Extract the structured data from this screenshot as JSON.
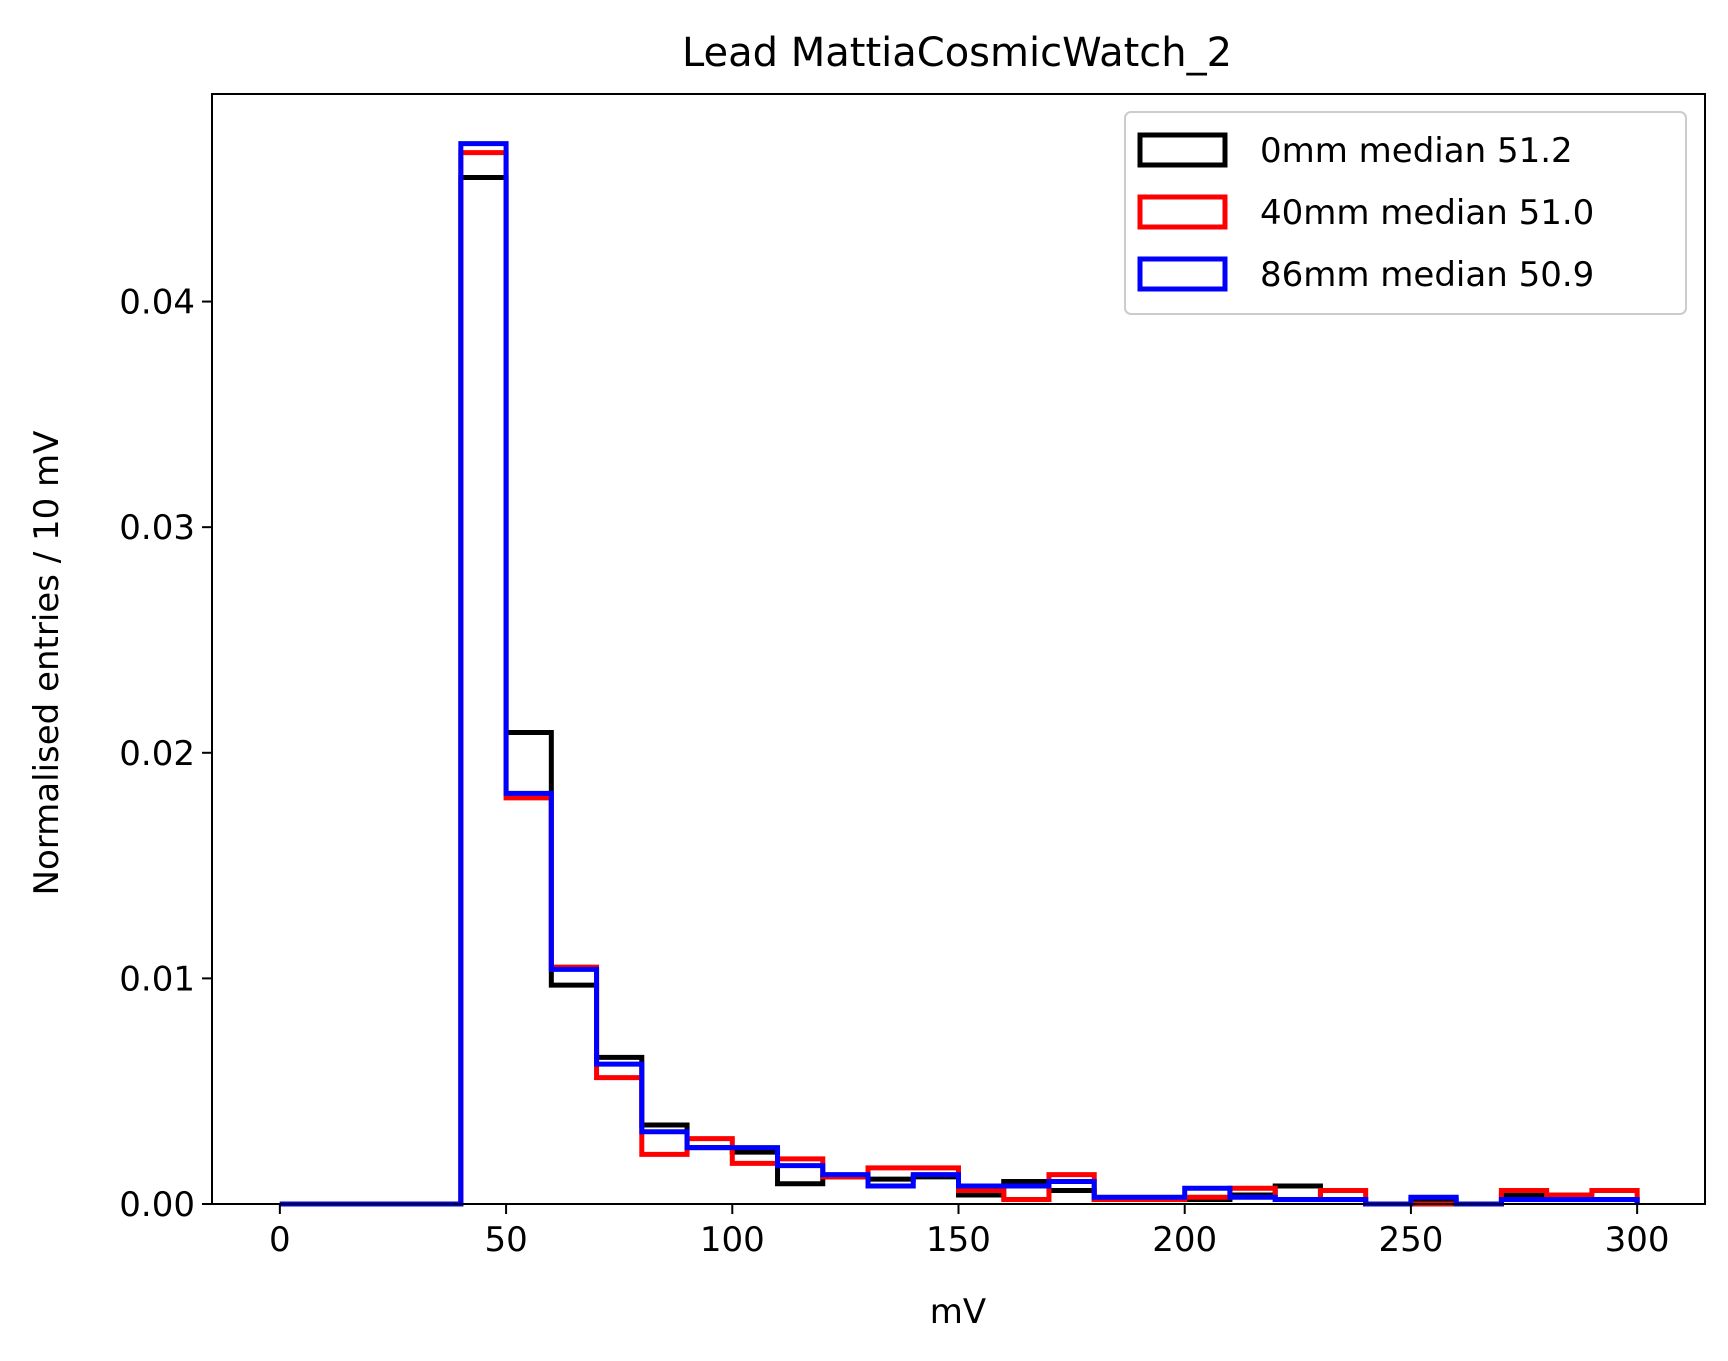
{
  "chart_data": {
    "type": "step-histogram",
    "title": "Lead MattiaCosmicWatch_2",
    "xlabel": "mV",
    "ylabel": "Normalised entries / 10 mV",
    "xlim": [
      -15,
      315
    ],
    "ylim": [
      0,
      0.0492
    ],
    "xticks": [
      0,
      50,
      100,
      150,
      200,
      250,
      300
    ],
    "xtick_labels": [
      "0",
      "50",
      "100",
      "150",
      "200",
      "250",
      "300"
    ],
    "yticks": [
      0.0,
      0.01,
      0.02,
      0.03,
      0.04
    ],
    "ytick_labels": [
      "0.00",
      "0.01",
      "0.02",
      "0.03",
      "0.04"
    ],
    "grid": false,
    "legend_position": "top-right",
    "bin_edges": [
      0,
      10,
      20,
      30,
      40,
      50,
      60,
      70,
      80,
      90,
      100,
      110,
      120,
      130,
      140,
      150,
      160,
      170,
      180,
      190,
      200,
      210,
      220,
      230,
      240,
      250,
      260,
      270,
      280,
      290,
      300
    ],
    "series": [
      {
        "name": "0mm median 51.2",
        "color": "#000000",
        "values": [
          0,
          0,
          0,
          0,
          0.0455,
          0.0209,
          0.0097,
          0.0065,
          0.0035,
          0.0025,
          0.0023,
          0.0009,
          0.0012,
          0.0011,
          0.0012,
          0.0004,
          0.001,
          0.0006,
          0.0002,
          0.0002,
          0.0002,
          0.0004,
          0.0008,
          0.0002,
          0.0,
          0.0002,
          0.0,
          0.0004,
          0.0002,
          0.0002
        ]
      },
      {
        "name": "40mm median 51.0",
        "color": "#ff0000",
        "values": [
          0,
          0,
          0,
          0,
          0.0466,
          0.018,
          0.0105,
          0.0056,
          0.0022,
          0.0029,
          0.0018,
          0.002,
          0.0012,
          0.0016,
          0.0016,
          0.0006,
          0.0002,
          0.0013,
          0.0002,
          0.0002,
          0.0003,
          0.0007,
          0.0002,
          0.0006,
          0.0,
          0.0,
          0.0,
          0.0006,
          0.0004,
          0.0006
        ]
      },
      {
        "name": "86mm median 50.9",
        "color": "#0000ff",
        "values": [
          0,
          0,
          0,
          0,
          0.047,
          0.0182,
          0.0104,
          0.0062,
          0.0032,
          0.0025,
          0.0025,
          0.0017,
          0.0013,
          0.0008,
          0.0013,
          0.0008,
          0.0008,
          0.001,
          0.0003,
          0.0003,
          0.0007,
          0.0003,
          0.0002,
          0.0002,
          0.0,
          0.0003,
          0.0,
          0.0002,
          0.0002,
          0.0002
        ]
      }
    ]
  }
}
